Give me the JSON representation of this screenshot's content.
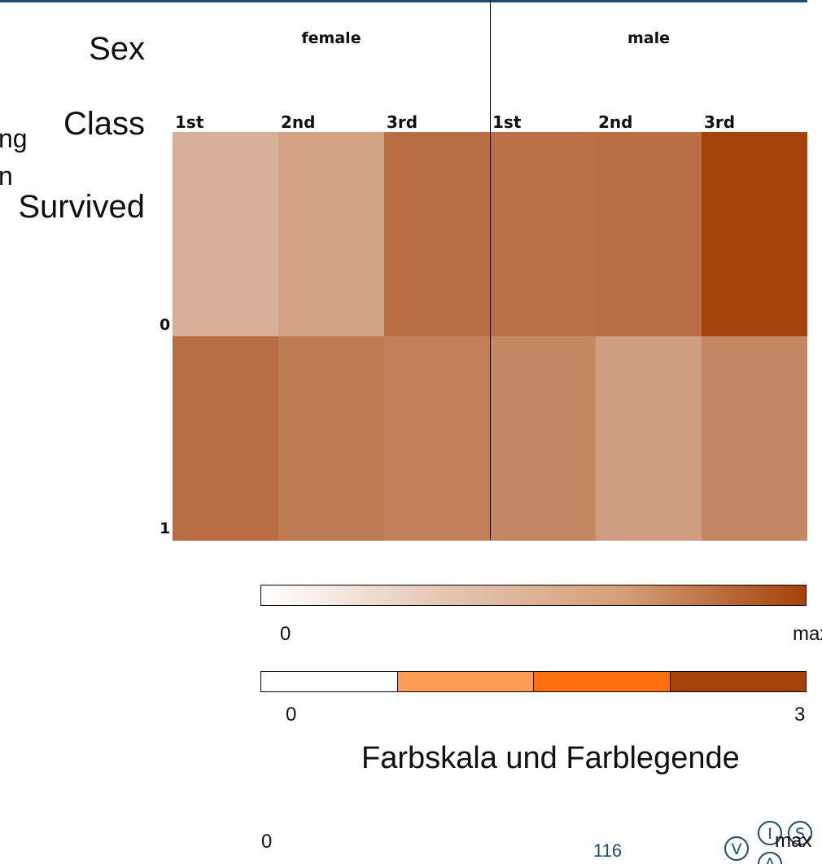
{
  "dimensions": {
    "sex": "Sex",
    "class": "Class",
    "survived": "Survived",
    "clipped_1": "ng",
    "clipped_2": "n"
  },
  "chart_data": {
    "type": "heatmap",
    "column_groups": [
      {
        "name": "female",
        "classes": [
          "1st",
          "2nd",
          "3rd"
        ]
      },
      {
        "name": "male",
        "classes": [
          "1st",
          "2nd",
          "3rd"
        ]
      }
    ],
    "rows": [
      "0",
      "1"
    ],
    "color_fraction": [
      [
        0.02,
        0.04,
        0.29,
        0.27,
        0.31,
        1.0
      ],
      [
        0.3,
        0.2,
        0.16,
        0.12,
        0.05,
        0.12
      ]
    ],
    "color_scale": {
      "min_label": "0",
      "max_label": "max",
      "start_color": "#ffffff",
      "end_color": "#a3420a"
    },
    "color_legend": {
      "min_label": "0",
      "max_label": "3",
      "bins": [
        "#ffffff",
        "#fd9d55",
        "#fd6f0f",
        "#a3420a"
      ]
    }
  },
  "caption": "Farbskala und Farblegende",
  "footer": {
    "left_label": "0",
    "page_number": "116",
    "max_label": "max"
  },
  "logo": {
    "letters": [
      "V",
      "I",
      "S",
      "A"
    ]
  }
}
